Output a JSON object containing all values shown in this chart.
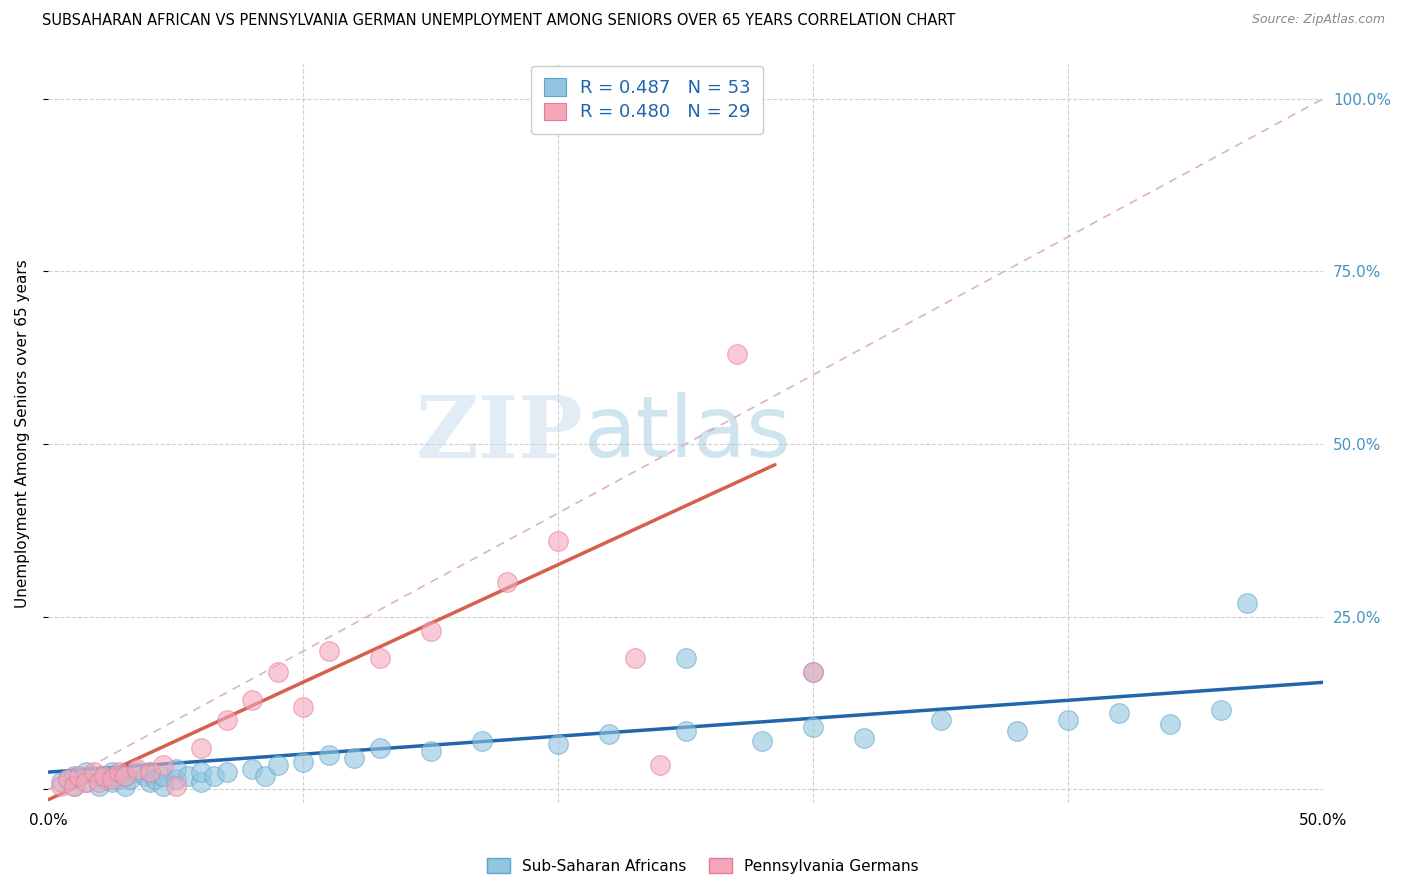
{
  "title": "SUBSAHARAN AFRICAN VS PENNSYLVANIA GERMAN UNEMPLOYMENT AMONG SENIORS OVER 65 YEARS CORRELATION CHART",
  "source": "Source: ZipAtlas.com",
  "ylabel": "Unemployment Among Seniors over 65 years",
  "xlim": [
    0.0,
    0.5
  ],
  "ylim": [
    -0.02,
    1.05
  ],
  "blue_color": "#92c5de",
  "blue_color_edge": "#5da3ce",
  "pink_color": "#f4a7b9",
  "pink_color_edge": "#e8799a",
  "blue_line_color": "#2166ac",
  "pink_line_color": "#d6604d",
  "dashed_line_color": "#d6a0b0",
  "right_label_color": "#4393c3",
  "r_blue": 0.487,
  "n_blue": 53,
  "r_pink": 0.48,
  "n_pink": 29,
  "legend_label_blue": "Sub-Saharan Africans",
  "legend_label_pink": "Pennsylvania Germans",
  "watermark_zip": "ZIP",
  "watermark_atlas": "atlas",
  "blue_scatter_x": [
    0.005,
    0.008,
    0.01,
    0.01,
    0.015,
    0.015,
    0.02,
    0.02,
    0.022,
    0.025,
    0.025,
    0.028,
    0.03,
    0.03,
    0.032,
    0.035,
    0.038,
    0.04,
    0.04,
    0.042,
    0.045,
    0.045,
    0.05,
    0.05,
    0.055,
    0.06,
    0.06,
    0.065,
    0.07,
    0.08,
    0.085,
    0.09,
    0.1,
    0.11,
    0.12,
    0.13,
    0.15,
    0.17,
    0.2,
    0.22,
    0.25,
    0.28,
    0.3,
    0.32,
    0.35,
    0.38,
    0.4,
    0.42,
    0.44,
    0.46,
    0.47,
    0.25,
    0.3
  ],
  "blue_scatter_y": [
    0.01,
    0.015,
    0.005,
    0.02,
    0.01,
    0.025,
    0.005,
    0.02,
    0.015,
    0.01,
    0.025,
    0.015,
    0.005,
    0.02,
    0.015,
    0.025,
    0.02,
    0.01,
    0.025,
    0.015,
    0.005,
    0.02,
    0.015,
    0.03,
    0.02,
    0.01,
    0.025,
    0.02,
    0.025,
    0.03,
    0.02,
    0.035,
    0.04,
    0.05,
    0.045,
    0.06,
    0.055,
    0.07,
    0.065,
    0.08,
    0.085,
    0.07,
    0.09,
    0.075,
    0.1,
    0.085,
    0.1,
    0.11,
    0.095,
    0.115,
    0.27,
    0.19,
    0.17
  ],
  "pink_scatter_x": [
    0.005,
    0.008,
    0.01,
    0.012,
    0.015,
    0.018,
    0.02,
    0.022,
    0.025,
    0.028,
    0.03,
    0.035,
    0.04,
    0.045,
    0.05,
    0.06,
    0.07,
    0.08,
    0.09,
    0.1,
    0.11,
    0.13,
    0.15,
    0.18,
    0.2,
    0.23,
    0.24,
    0.27,
    0.3
  ],
  "pink_scatter_y": [
    0.005,
    0.015,
    0.005,
    0.02,
    0.01,
    0.025,
    0.01,
    0.02,
    0.015,
    0.025,
    0.02,
    0.03,
    0.025,
    0.035,
    0.005,
    0.06,
    0.1,
    0.13,
    0.17,
    0.12,
    0.2,
    0.19,
    0.23,
    0.3,
    0.36,
    0.19,
    0.035,
    0.63,
    0.17
  ],
  "blue_line_x": [
    0.0,
    0.5
  ],
  "blue_line_y": [
    0.025,
    0.155
  ],
  "pink_line_x": [
    0.0,
    0.285
  ],
  "pink_line_y": [
    -0.015,
    0.47
  ],
  "dash_line_x": [
    0.0,
    0.5
  ],
  "dash_line_y": [
    0.0,
    1.0
  ]
}
